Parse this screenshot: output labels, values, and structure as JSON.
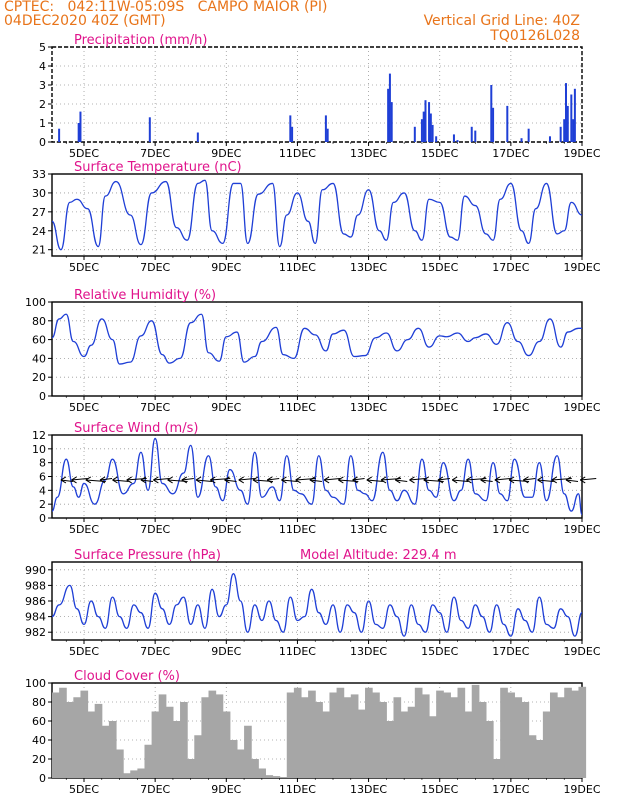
{
  "header": {
    "line1": "CPTEC:   042:11W-05:09S   CAMPO MAIOR (PI)",
    "line2": "04DEC2020 40Z (GMT)",
    "grid_note": "Vertical Grid Line: 40Z",
    "run_code": "TQ0126L028"
  },
  "colors": {
    "header": "#e8741a",
    "title": "#e0148c",
    "series": "#1f3fd6",
    "cloud": "#a6a6a6",
    "wind_arrow": "#000000"
  },
  "chart_data": [
    {
      "type": "bar",
      "title": "Precipitation (mm/h)",
      "x_ticks": [
        "5DEC",
        "7DEC",
        "9DEC",
        "11DEC",
        "13DEC",
        "15DEC",
        "17DEC",
        "19DEC"
      ],
      "x_tick_days": [
        5,
        7,
        9,
        11,
        13,
        15,
        17,
        19
      ],
      "xlim_days": [
        4.1,
        19.0
      ],
      "ylim": [
        0,
        5
      ],
      "y_ticks": [
        0,
        1,
        2,
        3,
        4,
        5
      ],
      "grid": true,
      "x_days": [
        4.3,
        4.85,
        4.9,
        6.85,
        8.2,
        10.8,
        10.85,
        11.8,
        11.85,
        13.55,
        13.6,
        13.65,
        14.3,
        14.5,
        14.55,
        14.6,
        14.7,
        14.75,
        14.8,
        14.9,
        15.4,
        15.5,
        15.9,
        16.0,
        16.45,
        16.5,
        16.9,
        17.3,
        17.5,
        18.1,
        18.4,
        18.5,
        18.55,
        18.6,
        18.7,
        18.75,
        18.8
      ],
      "values": [
        0.7,
        1.0,
        1.6,
        1.3,
        0.5,
        1.4,
        0.8,
        1.4,
        0.7,
        2.8,
        3.6,
        2.1,
        0.8,
        1.2,
        1.6,
        2.2,
        2.1,
        1.5,
        0.9,
        0.3,
        0.4,
        0.1,
        0.8,
        0.6,
        3.0,
        1.8,
        1.9,
        0.2,
        0.7,
        0.3,
        0.8,
        1.2,
        3.1,
        1.9,
        2.5,
        1.2,
        2.8
      ]
    },
    {
      "type": "line",
      "title": "Surface Temperature (nC)",
      "x_ticks": [
        "5DEC",
        "7DEC",
        "9DEC",
        "11DEC",
        "13DEC",
        "15DEC",
        "17DEC",
        "19DEC"
      ],
      "x_tick_days": [
        5,
        7,
        9,
        11,
        13,
        15,
        17,
        19
      ],
      "xlim_days": [
        4.1,
        19.0
      ],
      "ylim": [
        20,
        33
      ],
      "y_ticks": [
        21,
        24,
        27,
        30,
        33
      ],
      "grid": true,
      "series": [
        {
          "x_days": [
            4.1,
            4.35,
            4.6,
            4.8,
            5.1,
            5.4,
            5.6,
            5.9,
            6.3,
            6.6,
            6.9,
            7.3,
            7.6,
            7.9,
            8.2,
            8.4,
            8.6,
            8.9,
            9.2,
            9.4,
            9.6,
            9.9,
            10.3,
            10.5,
            10.7,
            11.0,
            11.3,
            11.5,
            11.7,
            12.0,
            12.3,
            12.5,
            12.7,
            13.0,
            13.3,
            13.5,
            13.7,
            14.0,
            14.3,
            14.5,
            14.7,
            15.0,
            15.3,
            15.5,
            15.7,
            16.0,
            16.3,
            16.5,
            16.7,
            17.0,
            17.3,
            17.5,
            17.7,
            18.0,
            18.3,
            18.5,
            18.7,
            19.0
          ],
          "values": [
            25.5,
            21.0,
            28.5,
            29.0,
            27.5,
            21.5,
            29.5,
            31.8,
            26.5,
            21.8,
            30.0,
            31.8,
            24.5,
            22.5,
            31.5,
            32.0,
            24.0,
            22.0,
            31.5,
            31.5,
            22.0,
            29.8,
            31.5,
            21.5,
            26.5,
            30.0,
            25.5,
            22.0,
            30.5,
            31.5,
            23.5,
            23.0,
            26.5,
            30.5,
            24.0,
            22.5,
            28.5,
            30.0,
            24.0,
            22.5,
            29.0,
            28.5,
            23.0,
            22.5,
            29.5,
            28.0,
            23.5,
            22.5,
            29.0,
            31.5,
            24.0,
            22.0,
            27.5,
            31.5,
            23.5,
            24.0,
            28.5,
            26.5
          ]
        }
      ]
    },
    {
      "type": "line",
      "title": "Relative Humidity (%)",
      "x_ticks": [
        "5DEC",
        "7DEC",
        "9DEC",
        "11DEC",
        "13DEC",
        "15DEC",
        "17DEC",
        "19DEC"
      ],
      "x_tick_days": [
        5,
        7,
        9,
        11,
        13,
        15,
        17,
        19
      ],
      "xlim_days": [
        4.1,
        19.0
      ],
      "ylim": [
        0,
        100
      ],
      "y_ticks": [
        0,
        20,
        40,
        60,
        80,
        100
      ],
      "grid": true,
      "series": [
        {
          "x_days": [
            4.1,
            4.3,
            4.5,
            4.7,
            5.0,
            5.2,
            5.5,
            5.8,
            6.0,
            6.3,
            6.6,
            6.9,
            7.2,
            7.4,
            7.7,
            8.0,
            8.3,
            8.5,
            8.8,
            9.0,
            9.3,
            9.5,
            9.8,
            10.0,
            10.4,
            10.6,
            10.9,
            11.2,
            11.5,
            11.8,
            12.0,
            12.3,
            12.6,
            12.9,
            13.2,
            13.5,
            13.8,
            14.1,
            14.4,
            14.7,
            15.0,
            15.2,
            15.5,
            15.8,
            16.0,
            16.3,
            16.6,
            16.9,
            17.2,
            17.5,
            17.8,
            18.1,
            18.4,
            18.6,
            18.9,
            19.0
          ],
          "values": [
            62,
            82,
            87,
            58,
            42,
            54,
            82,
            60,
            34,
            36,
            64,
            80,
            44,
            35,
            40,
            78,
            87,
            46,
            37,
            63,
            68,
            36,
            42,
            58,
            73,
            44,
            40,
            72,
            65,
            48,
            66,
            70,
            42,
            43,
            62,
            67,
            48,
            60,
            72,
            52,
            64,
            63,
            67,
            58,
            62,
            66,
            55,
            78,
            58,
            43,
            58,
            82,
            52,
            68,
            72,
            72
          ]
        }
      ]
    },
    {
      "type": "line",
      "title": "Surface Wind (m/s)",
      "x_ticks": [
        "5DEC",
        "7DEC",
        "9DEC",
        "11DEC",
        "13DEC",
        "15DEC",
        "17DEC",
        "19DEC"
      ],
      "x_tick_days": [
        5,
        7,
        9,
        11,
        13,
        15,
        17,
        19
      ],
      "xlim_days": [
        4.1,
        19.0
      ],
      "ylim": [
        0,
        12
      ],
      "y_ticks": [
        0,
        2,
        4,
        6,
        8,
        10,
        12
      ],
      "grid": true,
      "series": [
        {
          "x_days": [
            4.1,
            4.25,
            4.5,
            4.7,
            4.85,
            5.0,
            5.3,
            5.6,
            5.8,
            6.1,
            6.4,
            6.6,
            6.8,
            7.0,
            7.2,
            7.5,
            7.8,
            8.0,
            8.2,
            8.5,
            8.7,
            8.9,
            9.1,
            9.4,
            9.6,
            9.8,
            10.0,
            10.3,
            10.5,
            10.7,
            10.9,
            11.1,
            11.4,
            11.6,
            11.8,
            12.0,
            12.3,
            12.5,
            12.7,
            12.9,
            13.1,
            13.4,
            13.6,
            13.8,
            14.0,
            14.3,
            14.5,
            14.7,
            14.9,
            15.1,
            15.4,
            15.6,
            15.8,
            16.0,
            16.3,
            16.5,
            16.7,
            16.9,
            17.1,
            17.4,
            17.6,
            17.8,
            18.0,
            18.3,
            18.5,
            18.7,
            18.9,
            19.0
          ],
          "values": [
            1.0,
            3.0,
            8.5,
            4.5,
            3.0,
            5.0,
            2.0,
            5.5,
            8.5,
            3.5,
            5.0,
            9.5,
            4.0,
            11.5,
            5.0,
            3.5,
            6.5,
            10.5,
            3.0,
            9.0,
            4.5,
            2.5,
            7.0,
            4.0,
            2.0,
            9.5,
            3.0,
            4.5,
            2.5,
            9.0,
            4.0,
            3.5,
            2.0,
            9.0,
            4.0,
            3.0,
            2.0,
            9.0,
            4.0,
            3.5,
            2.5,
            9.5,
            4.0,
            2.5,
            4.0,
            2.0,
            8.5,
            4.0,
            3.0,
            8.0,
            2.5,
            4.0,
            8.5,
            3.5,
            2.5,
            8.0,
            3.5,
            2.5,
            8.5,
            3.0,
            3.0,
            8.0,
            2.5,
            9.0,
            3.5,
            1.0,
            3.5,
            0.5
          ]
        }
      ],
      "wind_vectors_days": [
        4.35,
        4.65,
        5.05,
        5.45,
        5.8,
        6.2,
        6.6,
        6.95,
        7.35,
        7.75,
        8.15,
        8.55,
        8.95,
        9.35,
        9.75,
        10.15,
        10.55,
        10.95,
        11.35,
        11.75,
        12.15,
        12.55,
        12.95,
        13.35,
        13.75,
        14.15,
        14.55,
        14.95,
        15.35,
        15.75,
        16.15,
        16.55,
        16.95,
        17.35,
        17.75,
        18.15,
        18.55,
        18.95
      ]
    },
    {
      "type": "line",
      "title": "Surface Pressure (hPa)",
      "annotation": "Model Altitude: 229.4 m",
      "x_ticks": [
        "5DEC",
        "7DEC",
        "9DEC",
        "11DEC",
        "13DEC",
        "15DEC",
        "17DEC",
        "19DEC"
      ],
      "x_tick_days": [
        5,
        7,
        9,
        11,
        13,
        15,
        17,
        19
      ],
      "xlim_days": [
        4.1,
        19.0
      ],
      "ylim": [
        981,
        991
      ],
      "y_ticks": [
        982,
        984,
        986,
        988,
        990
      ],
      "grid": true,
      "series": [
        {
          "x_days": [
            4.1,
            4.3,
            4.6,
            4.8,
            5.0,
            5.2,
            5.4,
            5.6,
            5.8,
            6.0,
            6.2,
            6.4,
            6.6,
            6.8,
            7.0,
            7.2,
            7.4,
            7.6,
            7.8,
            8.0,
            8.2,
            8.4,
            8.6,
            8.8,
            9.0,
            9.2,
            9.4,
            9.6,
            9.8,
            10.0,
            10.2,
            10.4,
            10.6,
            10.8,
            11.0,
            11.2,
            11.4,
            11.6,
            11.8,
            12.0,
            12.2,
            12.4,
            12.6,
            12.8,
            13.0,
            13.2,
            13.4,
            13.6,
            13.8,
            14.0,
            14.2,
            14.4,
            14.6,
            14.8,
            15.0,
            15.2,
            15.4,
            15.6,
            15.8,
            16.0,
            16.2,
            16.4,
            16.6,
            16.8,
            17.0,
            17.2,
            17.4,
            17.6,
            17.8,
            18.0,
            18.2,
            18.4,
            18.6,
            18.8,
            19.0
          ],
          "values": [
            984.0,
            985.5,
            988.0,
            985.0,
            983.0,
            986.0,
            984.0,
            982.5,
            986.5,
            984.0,
            982.5,
            985.5,
            984.5,
            982.5,
            987.0,
            985.0,
            983.0,
            985.5,
            986.5,
            983.0,
            985.5,
            982.5,
            987.5,
            984.0,
            985.5,
            989.5,
            986.0,
            982.0,
            985.5,
            983.5,
            986.0,
            983.5,
            982.0,
            986.5,
            983.5,
            984.0,
            987.5,
            984.5,
            983.0,
            985.5,
            982.0,
            985.5,
            984.5,
            982.0,
            986.0,
            983.0,
            982.5,
            985.5,
            984.0,
            981.5,
            985.5,
            983.0,
            982.0,
            985.5,
            984.5,
            982.0,
            986.5,
            983.5,
            982.5,
            985.5,
            984.0,
            982.0,
            985.5,
            983.0,
            981.5,
            985.0,
            983.5,
            982.0,
            986.5,
            983.0,
            982.5,
            985.0,
            984.0,
            981.5,
            984.5
          ]
        }
      ]
    },
    {
      "type": "area",
      "title": "Cloud Cover (%)",
      "x_ticks": [
        "5DEC",
        "7DEC",
        "9DEC",
        "11DEC",
        "13DEC",
        "15DEC",
        "17DEC",
        "19DEC"
      ],
      "x_tick_days": [
        5,
        7,
        9,
        11,
        13,
        15,
        17,
        19
      ],
      "xlim_days": [
        4.1,
        19.0
      ],
      "ylim": [
        0,
        100
      ],
      "y_ticks": [
        0,
        20,
        40,
        60,
        80,
        100
      ],
      "grid": true,
      "x_days": [
        4.1,
        4.3,
        4.5,
        4.7,
        4.9,
        5.1,
        5.3,
        5.5,
        5.7,
        5.9,
        6.1,
        6.3,
        6.5,
        6.7,
        6.9,
        7.1,
        7.3,
        7.5,
        7.7,
        7.9,
        8.1,
        8.3,
        8.5,
        8.7,
        8.9,
        9.1,
        9.3,
        9.5,
        9.7,
        9.9,
        10.1,
        10.3,
        10.5,
        10.7,
        10.9,
        11.1,
        11.3,
        11.5,
        11.7,
        11.9,
        12.1,
        12.3,
        12.5,
        12.7,
        12.9,
        13.1,
        13.3,
        13.5,
        13.7,
        13.9,
        14.1,
        14.3,
        14.5,
        14.7,
        14.9,
        15.1,
        15.3,
        15.5,
        15.7,
        15.9,
        16.1,
        16.3,
        16.5,
        16.7,
        16.9,
        17.1,
        17.3,
        17.5,
        17.7,
        17.9,
        18.1,
        18.3,
        18.5,
        18.7,
        18.9
      ],
      "values": [
        90,
        95,
        80,
        85,
        92,
        70,
        78,
        55,
        60,
        30,
        5,
        8,
        10,
        35,
        70,
        88,
        75,
        60,
        80,
        20,
        45,
        85,
        92,
        88,
        70,
        40,
        30,
        55,
        20,
        10,
        3,
        2,
        1,
        90,
        95,
        85,
        92,
        80,
        70,
        90,
        95,
        85,
        88,
        72,
        95,
        90,
        80,
        60,
        85,
        70,
        75,
        95,
        88,
        65,
        92,
        90,
        85,
        95,
        70,
        98,
        80,
        60,
        20,
        95,
        90,
        85,
        80,
        45,
        40,
        70,
        90,
        85,
        95,
        92,
        96
      ]
    }
  ]
}
